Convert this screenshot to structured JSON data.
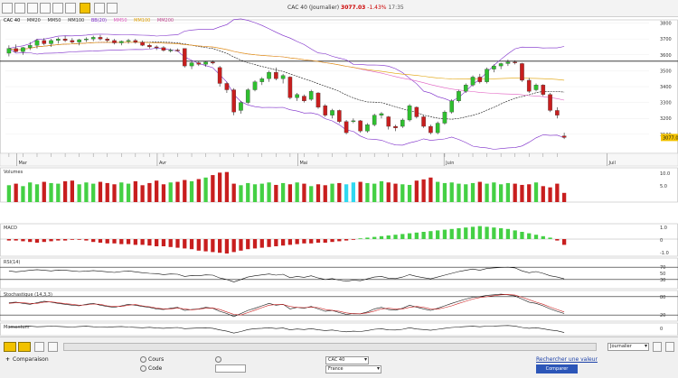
{
  "toolbar": {
    "ticker": "CAC 40",
    "period": "(Journalier)",
    "price": "3077.03",
    "change": "-1.43%",
    "time": "17:35"
  },
  "legend": {
    "items": [
      "CAC 40",
      "MM20",
      "MM50",
      "MM100",
      "BB(20)",
      "MM50",
      "MM100",
      "MM200"
    ]
  },
  "chart_data": [
    {
      "type": "candlestick",
      "title": "CAC 40",
      "ylim": [
        2980,
        3820
      ],
      "horizontal_lines": [
        3560
      ],
      "y_tick_labels": [
        "3800",
        "3700",
        "3600",
        "3500",
        "3400",
        "3300",
        "3200",
        "3100"
      ],
      "price_tag": "3077.03",
      "candles": [
        [
          3610,
          3660,
          3590,
          3640
        ],
        [
          3640,
          3665,
          3615,
          3620
        ],
        [
          3620,
          3650,
          3600,
          3645
        ],
        [
          3645,
          3680,
          3630,
          3660
        ],
        [
          3660,
          3700,
          3640,
          3690
        ],
        [
          3690,
          3705,
          3660,
          3670
        ],
        [
          3670,
          3700,
          3650,
          3690
        ],
        [
          3690,
          3710,
          3670,
          3700
        ],
        [
          3700,
          3720,
          3680,
          3690
        ],
        [
          3690,
          3705,
          3670,
          3680
        ],
        [
          3680,
          3700,
          3660,
          3695
        ],
        [
          3695,
          3710,
          3680,
          3700
        ],
        [
          3700,
          3720,
          3685,
          3710
        ],
        [
          3710,
          3725,
          3690,
          3700
        ],
        [
          3700,
          3710,
          3680,
          3690
        ],
        [
          3690,
          3700,
          3665,
          3675
        ],
        [
          3675,
          3690,
          3660,
          3685
        ],
        [
          3685,
          3700,
          3670,
          3690
        ],
        [
          3690,
          3700,
          3670,
          3680
        ],
        [
          3680,
          3690,
          3655,
          3660
        ],
        [
          3660,
          3670,
          3640,
          3650
        ],
        [
          3650,
          3660,
          3630,
          3645
        ],
        [
          3645,
          3655,
          3620,
          3628
        ],
        [
          3628,
          3640,
          3615,
          3630
        ],
        [
          3630,
          3640,
          3620,
          3625
        ],
        [
          3640,
          3640,
          3520,
          3530
        ],
        [
          3530,
          3560,
          3510,
          3550
        ],
        [
          3550,
          3560,
          3530,
          3540
        ],
        [
          3540,
          3560,
          3525,
          3555
        ],
        [
          3555,
          3565,
          3540,
          3548
        ],
        [
          3520,
          3530,
          3400,
          3420
        ],
        [
          3420,
          3430,
          3360,
          3380
        ],
        [
          3380,
          3390,
          3220,
          3240
        ],
        [
          3250,
          3310,
          3230,
          3300
        ],
        [
          3300,
          3390,
          3290,
          3380
        ],
        [
          3380,
          3440,
          3370,
          3430
        ],
        [
          3430,
          3460,
          3410,
          3450
        ],
        [
          3450,
          3500,
          3430,
          3490
        ],
        [
          3490,
          3520,
          3440,
          3450
        ],
        [
          3450,
          3480,
          3420,
          3470
        ],
        [
          3460,
          3465,
          3320,
          3330
        ],
        [
          3330,
          3360,
          3310,
          3350
        ],
        [
          3340,
          3350,
          3300,
          3310
        ],
        [
          3320,
          3380,
          3310,
          3370
        ],
        [
          3360,
          3365,
          3260,
          3270
        ],
        [
          3280,
          3290,
          3210,
          3220
        ],
        [
          3220,
          3260,
          3200,
          3250
        ],
        [
          3250,
          3255,
          3170,
          3180
        ],
        [
          3180,
          3190,
          3100,
          3110
        ],
        [
          3180,
          3200,
          3170,
          3185
        ],
        [
          3185,
          3190,
          3110,
          3120
        ],
        [
          3120,
          3170,
          3110,
          3160
        ],
        [
          3160,
          3230,
          3150,
          3220
        ],
        [
          3220,
          3240,
          3200,
          3230
        ],
        [
          3210,
          3215,
          3130,
          3150
        ],
        [
          3150,
          3160,
          3120,
          3140
        ],
        [
          3150,
          3200,
          3140,
          3190
        ],
        [
          3190,
          3290,
          3180,
          3280
        ],
        [
          3270,
          3275,
          3200,
          3210
        ],
        [
          3210,
          3220,
          3140,
          3150
        ],
        [
          3150,
          3160,
          3100,
          3110
        ],
        [
          3110,
          3180,
          3100,
          3170
        ],
        [
          3170,
          3250,
          3160,
          3240
        ],
        [
          3240,
          3320,
          3230,
          3310
        ],
        [
          3310,
          3380,
          3300,
          3370
        ],
        [
          3370,
          3420,
          3360,
          3410
        ],
        [
          3410,
          3470,
          3400,
          3460
        ],
        [
          3460,
          3480,
          3420,
          3430
        ],
        [
          3430,
          3520,
          3420,
          3510
        ],
        [
          3510,
          3540,
          3490,
          3530
        ],
        [
          3530,
          3550,
          3510,
          3545
        ],
        [
          3545,
          3570,
          3530,
          3555
        ],
        [
          3555,
          3565,
          3540,
          3550
        ],
        [
          3545,
          3550,
          3430,
          3440
        ],
        [
          3440,
          3455,
          3360,
          3370
        ],
        [
          3380,
          3420,
          3370,
          3410
        ],
        [
          3410,
          3415,
          3340,
          3350
        ],
        [
          3350,
          3360,
          3240,
          3250
        ],
        [
          3250,
          3270,
          3200,
          3220
        ],
        [
          3090,
          3110,
          3070,
          3080
        ]
      ]
    },
    {
      "type": "bar",
      "title": "Volumes",
      "values": [
        55,
        60,
        52,
        64,
        58,
        66,
        62,
        60,
        68,
        70,
        58,
        64,
        60,
        66,
        62,
        58,
        64,
        60,
        68,
        55,
        62,
        70,
        58,
        64,
        66,
        72,
        68,
        75,
        80,
        88,
        96,
        98,
        60,
        55,
        62,
        58,
        60,
        64,
        56,
        62,
        58,
        64,
        60,
        52,
        58,
        55,
        60,
        62,
        58,
        64,
        66,
        62,
        60,
        68,
        64,
        60,
        58,
        56,
        70,
        74,
        80,
        66,
        62,
        64,
        60,
        58,
        62,
        66,
        60,
        64,
        58,
        62,
        60,
        56,
        58,
        64,
        52,
        48,
        60,
        30
      ],
      "y_tick_labels": [
        "10.0",
        "5.0"
      ]
    },
    {
      "type": "bar",
      "title": "MACD",
      "values": [
        -0.1,
        -0.1,
        -0.15,
        -0.2,
        -0.25,
        -0.2,
        -0.15,
        -0.1,
        -0.1,
        -0.05,
        -0.05,
        -0.1,
        -0.2,
        -0.25,
        -0.3,
        -0.3,
        -0.35,
        -0.35,
        -0.4,
        -0.4,
        -0.45,
        -0.5,
        -0.5,
        -0.55,
        -0.6,
        -0.65,
        -0.7,
        -0.8,
        -0.85,
        -0.9,
        -0.95,
        -1.0,
        -0.9,
        -0.8,
        -0.7,
        -0.65,
        -0.6,
        -0.55,
        -0.5,
        -0.45,
        -0.4,
        -0.35,
        -0.3,
        -0.3,
        -0.25,
        -0.25,
        -0.2,
        -0.15,
        -0.1,
        -0.05,
        0.05,
        0.1,
        0.15,
        0.2,
        0.25,
        0.3,
        0.35,
        0.4,
        0.45,
        0.5,
        0.55,
        0.6,
        0.65,
        0.7,
        0.75,
        0.8,
        0.85,
        0.9,
        0.85,
        0.8,
        0.75,
        0.7,
        0.6,
        0.5,
        0.4,
        0.3,
        0.2,
        0.1,
        -0.1,
        -0.4
      ],
      "y_tick_labels": [
        "1.0",
        "0",
        "-1.0"
      ]
    },
    {
      "type": "line",
      "title": "RSI(14)",
      "ylim": [
        0,
        100
      ],
      "horizontal_lines": [
        70,
        30
      ],
      "values": [
        58,
        55,
        57,
        60,
        62,
        60,
        58,
        61,
        60,
        58,
        56,
        57,
        59,
        57,
        55,
        53,
        56,
        58,
        55,
        52,
        50,
        49,
        46,
        48,
        47,
        40,
        43,
        42,
        45,
        44,
        35,
        30,
        22,
        30,
        38,
        42,
        45,
        48,
        44,
        47,
        36,
        40,
        37,
        42,
        35,
        30,
        33,
        28,
        24,
        28,
        26,
        32,
        38,
        40,
        34,
        33,
        38,
        46,
        40,
        36,
        32,
        38,
        44,
        50,
        56,
        60,
        64,
        60,
        66,
        68,
        69,
        70,
        68,
        58,
        52,
        56,
        50,
        42,
        38,
        32
      ],
      "y_tick_labels": [
        "70",
        "50",
        "30"
      ]
    },
    {
      "type": "line",
      "title": "Stochastique (14,3,3)",
      "ylim": [
        0,
        100
      ],
      "horizontal_lines": [
        80,
        20
      ],
      "series": [
        {
          "values": [
            60,
            62,
            58,
            55,
            60,
            65,
            62,
            58,
            55,
            52,
            50,
            55,
            58,
            52,
            48,
            45,
            50,
            55,
            52,
            48,
            45,
            40,
            38,
            42,
            45,
            35,
            38,
            40,
            45,
            42,
            32,
            25,
            15,
            25,
            35,
            42,
            50,
            58,
            52,
            55,
            40,
            45,
            42,
            48,
            40,
            32,
            35,
            28,
            22,
            25,
            24,
            30,
            40,
            45,
            38,
            36,
            42,
            52,
            46,
            40,
            35,
            42,
            50,
            58,
            65,
            72,
            78,
            80,
            84,
            86,
            88,
            86,
            82,
            72,
            62,
            58,
            50,
            40,
            32,
            25
          ]
        },
        {
          "values": [
            58,
            60,
            60,
            58,
            58,
            62,
            63,
            60,
            57,
            55,
            52,
            53,
            56,
            55,
            50,
            48,
            48,
            52,
            54,
            50,
            47,
            43,
            40,
            40,
            43,
            40,
            37,
            39,
            42,
            43,
            38,
            30,
            22,
            20,
            28,
            36,
            44,
            52,
            54,
            54,
            48,
            45,
            44,
            46,
            44,
            38,
            35,
            32,
            27,
            24,
            24,
            27,
            33,
            40,
            42,
            40,
            40,
            45,
            48,
            45,
            40,
            39,
            44,
            50,
            58,
            65,
            72,
            77,
            80,
            83,
            86,
            87,
            85,
            78,
            70,
            62,
            55,
            46,
            38,
            30
          ]
        }
      ],
      "y_tick_labels": [
        "80",
        "20"
      ]
    },
    {
      "type": "line",
      "title": "Momentum",
      "values": [
        70,
        68,
        72,
        74,
        70,
        72,
        75,
        73,
        70,
        68,
        72,
        74,
        70,
        68,
        66,
        70,
        72,
        68,
        65,
        62,
        66,
        60,
        58,
        62,
        64,
        55,
        58,
        60,
        62,
        58,
        45,
        35,
        20,
        32,
        48,
        55,
        58,
        62,
        56,
        60,
        46,
        52,
        48,
        55,
        46,
        40,
        44,
        36,
        30,
        35,
        32,
        40,
        50,
        54,
        45,
        44,
        50,
        62,
        52,
        48,
        42,
        50,
        58,
        64,
        68,
        72,
        74,
        70,
        75,
        76,
        78,
        80,
        76,
        64,
        58,
        62,
        54,
        44,
        38,
        24
      ],
      "y_tick_labels": [
        "0"
      ]
    }
  ],
  "x_axis": {
    "month_labels": [
      "Mar",
      "Avr",
      "Mai",
      "Juin",
      "Juil"
    ]
  },
  "footer": {
    "search_label": "Rechercher une valeur",
    "compare_label": "Comparaison",
    "radio1": "Cours",
    "radio2": "Code",
    "period_select": "Journalier",
    "input1_value": "CAC 40",
    "input2_value": "France",
    "compare_button": "Comparer"
  }
}
